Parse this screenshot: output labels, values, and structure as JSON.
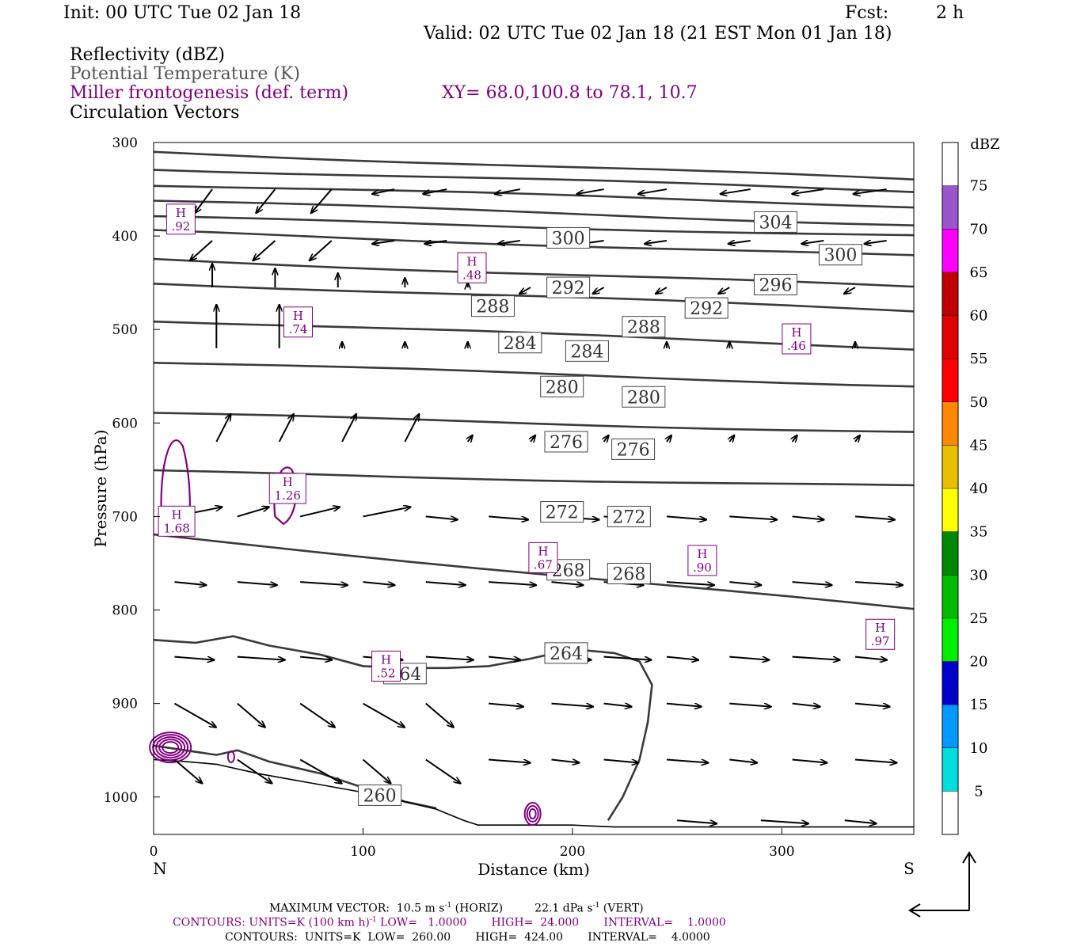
{
  "header": {
    "init": "Init: 00 UTC Tue 02 Jan 18",
    "fcst_label": "Fcst:",
    "fcst_value": "2 h",
    "valid": "Valid: 02 UTC Tue 02 Jan 18 (21 EST Mon 01 Jan 18)",
    "field1": "Reflectivity (dBZ)",
    "field2": "Potential Temperature (K)",
    "field3": "Miller frontogenesis (def. term)",
    "xy": "XY=  68.0,100.8 to  78.1, 10.7",
    "field4": "Circulation Vectors"
  },
  "footer": {
    "max_vector_label": "MAXIMUM VECTOR:",
    "max_vector_horiz": "10.5 m s",
    "max_vector_horiz_unit": "(HORIZ)",
    "max_vector_vert": "22.1 dPa s",
    "max_vector_vert_unit": "(VERT)",
    "contours1": "CONTOURS:  UNITS=K (100 km h)",
    "contours1_rest": " LOW=   1.0000       HIGH=  24.000       INTERVAL=    1.0000",
    "contours2": "CONTOURS:  UNITS=K  LOW=  260.00       HIGH=  424.00       INTERVAL=    4.0000",
    "sup": "-1"
  },
  "chart_data": {
    "type": "cross-section",
    "xlabel": "Distance (km)",
    "ylabel": "Pressure (hPa)",
    "xlim": [
      0,
      363
    ],
    "ylim": [
      1040,
      300
    ],
    "x_ticks": [
      0,
      100,
      200,
      300
    ],
    "y_ticks": [
      300,
      400,
      500,
      600,
      700,
      800,
      900,
      1000
    ],
    "x_end_labels": {
      "left": "N",
      "right": "S"
    },
    "colorbar": {
      "title": "dBZ",
      "labels": [
        "75",
        "70",
        "65",
        "60",
        "55",
        "50",
        "45",
        "40",
        "35",
        "30",
        "25",
        "20",
        "15",
        "10",
        "5"
      ],
      "colors": [
        "#ffffff",
        "#9955cc",
        "#ff00ff",
        "#c00000",
        "#e00000",
        "#ff0000",
        "#ff8800",
        "#e8c000",
        "#ffff00",
        "#008800",
        "#00bb00",
        "#00ee00",
        "#0000cc",
        "#0099ff",
        "#00dddd",
        "#ffffff"
      ]
    },
    "theta_lines": [
      {
        "p": [
          310,
          340
        ]
      },
      {
        "p": [
          328,
          352
        ]
      },
      {
        "p": [
          345,
          368
        ]
      },
      {
        "p": [
          362,
          388
        ]
      },
      {
        "p": [
          380,
          400
        ]
      },
      {
        "p": [
          395,
          422
        ]
      },
      {
        "p": [
          425,
          455
        ]
      },
      {
        "p": [
          450,
          480
        ]
      },
      {
        "p": [
          490,
          520
        ]
      },
      {
        "p": [
          535,
          560
        ]
      },
      {
        "p": [
          590,
          610
        ]
      },
      {
        "p": [
          652,
          668
        ]
      },
      {
        "p": [
          720,
          800
        ]
      }
    ],
    "theta_labels": [
      {
        "text": "304",
        "x": 297,
        "p": 385
      },
      {
        "text": "300",
        "x": 198,
        "p": 402
      },
      {
        "text": "300",
        "x": 328,
        "p": 420
      },
      {
        "text": "292",
        "x": 198,
        "p": 455
      },
      {
        "text": "296",
        "x": 297,
        "p": 452
      },
      {
        "text": "288",
        "x": 162,
        "p": 475
      },
      {
        "text": "292",
        "x": 264,
        "p": 477
      },
      {
        "text": "288",
        "x": 234,
        "p": 497
      },
      {
        "text": "284",
        "x": 175,
        "p": 514
      },
      {
        "text": "284",
        "x": 207,
        "p": 523
      },
      {
        "text": "280",
        "x": 195,
        "p": 561
      },
      {
        "text": "280",
        "x": 234,
        "p": 572
      },
      {
        "text": "276",
        "x": 197,
        "p": 620
      },
      {
        "text": "276",
        "x": 229,
        "p": 628
      },
      {
        "text": "272",
        "x": 195,
        "p": 695
      },
      {
        "text": "272",
        "x": 227,
        "p": 700
      },
      {
        "text": "268",
        "x": 198,
        "p": 757
      },
      {
        "text": "268",
        "x": 227,
        "p": 761
      },
      {
        "text": "264",
        "x": 197,
        "p": 846
      },
      {
        "text": "264",
        "x": 120,
        "p": 868
      },
      {
        "text": "260",
        "x": 108,
        "p": 998
      }
    ],
    "front_labels": [
      {
        "h": "H",
        "v": ".92",
        "x": 13,
        "p": 382
      },
      {
        "h": "H",
        "v": ".48",
        "x": 152,
        "p": 434
      },
      {
        "h": "H",
        "v": ".74",
        "x": 69,
        "p": 492
      },
      {
        "h": "H",
        "v": ".46",
        "x": 307,
        "p": 510
      },
      {
        "h": "H",
        "v": "1.26",
        "x": 64,
        "p": 670
      },
      {
        "h": "H",
        "v": "1.68",
        "x": 11,
        "p": 705
      },
      {
        "h": "H",
        "v": ".67",
        "x": 186,
        "p": 744
      },
      {
        "h": "H",
        "v": ".90",
        "x": 262,
        "p": 747
      },
      {
        "h": "H",
        "v": ".97",
        "x": 347,
        "p": 826
      },
      {
        "h": "H",
        "v": ".52",
        "x": 111,
        "p": 860
      }
    ]
  }
}
